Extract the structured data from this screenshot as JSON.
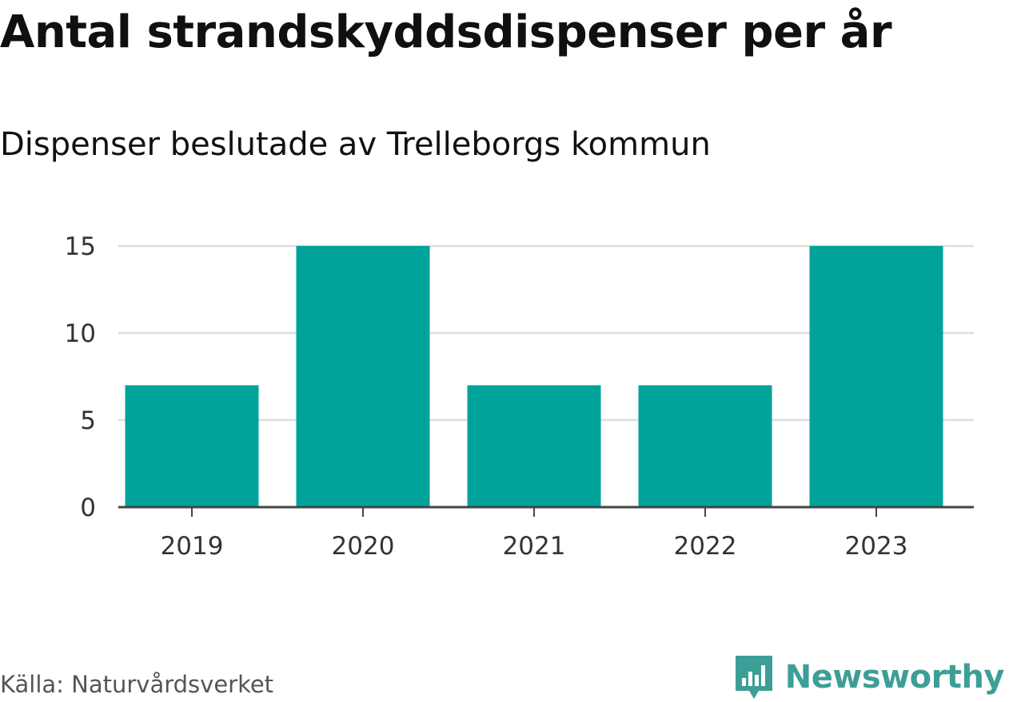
{
  "header": {
    "title": "Antal strandskyddsdispenser per år",
    "subtitle": "Dispenser beslutade av Trelleborgs kommun"
  },
  "footer": {
    "source": "Källa: Naturvårdsverket",
    "brand": "Newsworthy"
  },
  "colors": {
    "bar": "#00a39a",
    "grid": "#dddddd",
    "axis": "#444444",
    "brand": "#3d9e98"
  },
  "chart_data": {
    "type": "bar",
    "title": "Antal strandskyddsdispenser per år",
    "subtitle": "Dispenser beslutade av Trelleborgs kommun",
    "xlabel": "",
    "ylabel": "",
    "categories": [
      "2019",
      "2020",
      "2021",
      "2022",
      "2023"
    ],
    "values": [
      7,
      15,
      7,
      7,
      15
    ],
    "ylim": [
      0,
      15
    ],
    "yticks": [
      0,
      5,
      10,
      15
    ],
    "grid": true,
    "legend": "none"
  }
}
